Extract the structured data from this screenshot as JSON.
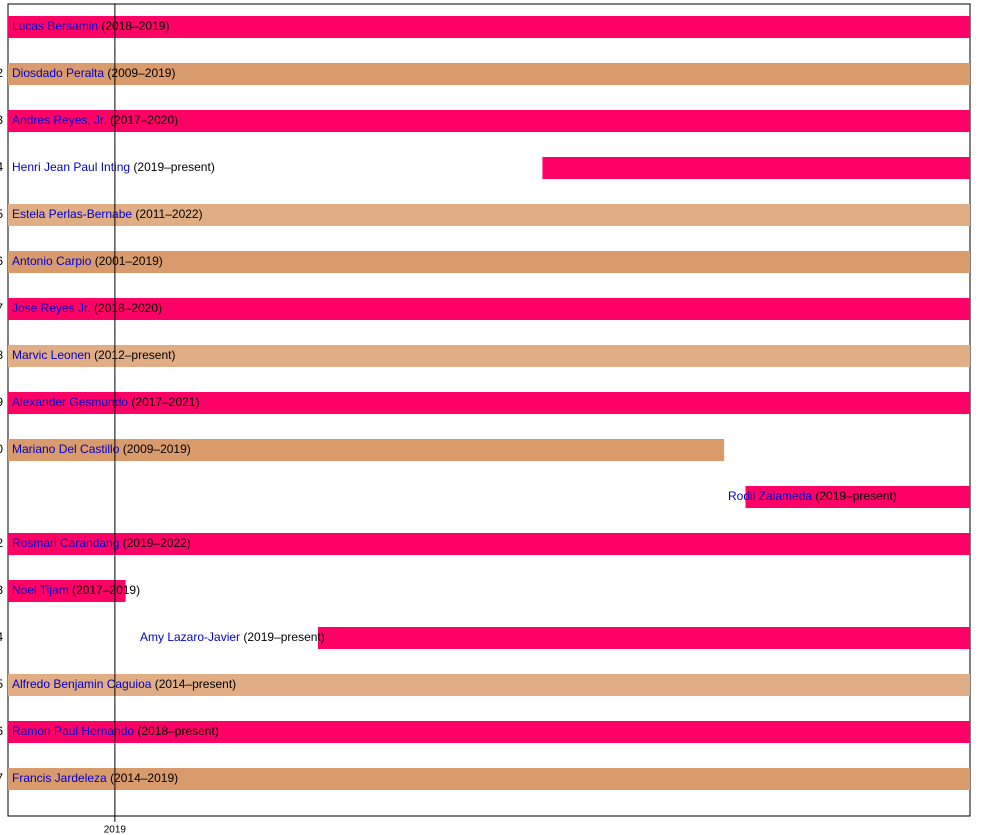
{
  "chart_data": {
    "type": "timeline",
    "xlim": [
      2018.9,
      2019.8
    ],
    "xticks": [
      2019
    ],
    "rows": [
      {
        "rank": null,
        "name": "Lucas Bersamin",
        "years": "(2018–2019)",
        "start": 2018.9,
        "end": 2019.8,
        "color": "#ff0066"
      },
      {
        "rank": "2",
        "name": "Diosdado Peralta",
        "years": "(2009–2019)",
        "start": 2018.9,
        "end": 2019.8,
        "color": "#d99a6c"
      },
      {
        "rank": "3",
        "name": "Andres Reyes, Jr.",
        "years": "(2017–2020)",
        "start": 2018.9,
        "end": 2019.8,
        "color": "#ff0066"
      },
      {
        "rank": "4",
        "name": "Henri Jean Paul Inting",
        "years": "(2019–present)",
        "start": 2019.4,
        "end": 2019.8,
        "color": "#ff0066"
      },
      {
        "rank": "5",
        "name": "Estela Perlas-Bernabe",
        "years": "(2011–2022)",
        "start": 2018.9,
        "end": 2019.8,
        "color": "#e0ad84"
      },
      {
        "rank": "6",
        "name": "Antonio Carpio",
        "years": "(2001–2019)",
        "start": 2018.9,
        "end": 2019.8,
        "color": "#d99a6c"
      },
      {
        "rank": "7",
        "name": "Jose Reyes Jr.",
        "years": "(2018–2020)",
        "start": 2018.9,
        "end": 2019.8,
        "color": "#ff0066"
      },
      {
        "rank": "8",
        "name": "Marvic Leonen",
        "years": "(2012–present)",
        "start": 2018.9,
        "end": 2019.8,
        "color": "#e0ad84"
      },
      {
        "rank": "9",
        "name": "Alexander Gesmundo",
        "years": "(2017–2021)",
        "start": 2018.9,
        "end": 2019.8,
        "color": "#ff0066"
      },
      {
        "rank": "0",
        "name": "Mariano Del Castillo",
        "years": "(2009–2019)",
        "start": 2018.9,
        "end": 2019.57,
        "color": "#d99a6c"
      },
      {
        "rank": null,
        "name": "Rodil Zalameda",
        "years": "(2019–present)",
        "start": 2019.59,
        "end": 2019.8,
        "color": "#ff0066"
      },
      {
        "rank": "2",
        "name": "Rosmari Carandang",
        "years": "(2019–2022)",
        "start": 2018.9,
        "end": 2019.8,
        "color": "#ff0066"
      },
      {
        "rank": "3",
        "name": "Noel Tijam",
        "years": "(2017–2019)",
        "start": 2018.9,
        "end": 2019.01,
        "color": "#ff0066"
      },
      {
        "rank": "4",
        "name": "Amy Lazaro-Javier",
        "years": "(2019–present)",
        "start": 2019.19,
        "end": 2019.8,
        "color": "#ff0066"
      },
      {
        "rank": "5",
        "name": "Alfredo Benjamin Caguioa",
        "years": "(2014–present)",
        "start": 2018.9,
        "end": 2019.8,
        "color": "#e0ad84"
      },
      {
        "rank": "6",
        "name": "Ramon Paul Hernando",
        "years": "(2018–present)",
        "start": 2018.9,
        "end": 2019.8,
        "color": "#ff0066"
      },
      {
        "rank": "7",
        "name": "Francis Jardeleza",
        "years": "(2014–2019)",
        "start": 2018.9,
        "end": 2019.8,
        "color": "#d99a6c"
      }
    ]
  }
}
